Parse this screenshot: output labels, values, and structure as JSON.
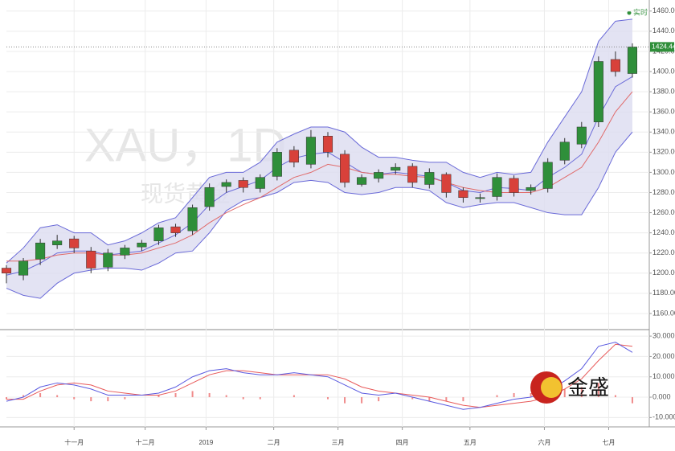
{
  "chart_data": [
    {
      "type": "candlestick",
      "watermark": "XAU，1D",
      "watermark_sub": "现货黄金",
      "legend_label": "实时",
      "x": [
        0,
        5,
        10,
        15,
        20,
        25,
        30,
        35,
        40,
        45,
        50,
        55,
        60,
        65,
        70,
        75,
        80,
        85,
        90,
        95,
        100,
        105,
        110,
        115,
        120,
        125,
        130,
        135,
        140,
        145,
        150,
        155,
        160,
        165,
        170,
        175,
        180,
        185
      ],
      "open": [
        1205,
        1198,
        1214,
        1228,
        1234,
        1222,
        1206,
        1218,
        1226,
        1232,
        1246,
        1242,
        1266,
        1286,
        1292,
        1284,
        1296,
        1322,
        1308,
        1336,
        1318,
        1288,
        1294,
        1302,
        1306,
        1288,
        1298,
        1282,
        1274,
        1276,
        1294,
        1282,
        1284,
        1312,
        1328,
        1350,
        1412,
        1398
      ],
      "high": [
        1208,
        1215,
        1234,
        1238,
        1237,
        1226,
        1224,
        1228,
        1233,
        1248,
        1249,
        1268,
        1289,
        1293,
        1295,
        1298,
        1324,
        1326,
        1342,
        1340,
        1322,
        1298,
        1303,
        1309,
        1309,
        1304,
        1300,
        1285,
        1279,
        1299,
        1297,
        1288,
        1314,
        1334,
        1350,
        1415,
        1420,
        1428
      ],
      "low": [
        1190,
        1193,
        1208,
        1224,
        1220,
        1200,
        1202,
        1214,
        1222,
        1228,
        1236,
        1238,
        1262,
        1280,
        1280,
        1280,
        1292,
        1305,
        1304,
        1315,
        1285,
        1286,
        1290,
        1298,
        1285,
        1284,
        1275,
        1270,
        1270,
        1272,
        1276,
        1278,
        1280,
        1308,
        1324,
        1345,
        1395,
        1394
      ],
      "close": [
        1200,
        1212,
        1230,
        1232,
        1225,
        1205,
        1220,
        1225,
        1230,
        1245,
        1240,
        1265,
        1285,
        1290,
        1285,
        1295,
        1320,
        1310,
        1335,
        1320,
        1290,
        1295,
        1300,
        1305,
        1290,
        1300,
        1280,
        1275,
        1275,
        1295,
        1280,
        1285,
        1310,
        1330,
        1345,
        1410,
        1400,
        1424.44
      ],
      "up_color": "#2f8f3a",
      "down_color": "#d8413a",
      "bollinger": {
        "color": "#6a6ad8",
        "fill": "#dcdcf0",
        "upper": [
          1210,
          1225,
          1245,
          1248,
          1240,
          1240,
          1228,
          1232,
          1240,
          1250,
          1255,
          1275,
          1295,
          1300,
          1300,
          1310,
          1330,
          1338,
          1345,
          1345,
          1340,
          1325,
          1315,
          1315,
          1312,
          1310,
          1310,
          1300,
          1295,
          1300,
          1298,
          1300,
          1330,
          1355,
          1380,
          1430,
          1450,
          1452
        ],
        "middle": [
          1198,
          1202,
          1210,
          1220,
          1222,
          1222,
          1218,
          1220,
          1222,
          1230,
          1238,
          1250,
          1268,
          1280,
          1286,
          1292,
          1305,
          1314,
          1318,
          1320,
          1310,
          1300,
          1298,
          1300,
          1298,
          1296,
          1290,
          1282,
          1280,
          1285,
          1284,
          1282,
          1295,
          1305,
          1318,
          1355,
          1385,
          1395
        ],
        "lower": [
          1185,
          1178,
          1175,
          1190,
          1200,
          1203,
          1205,
          1205,
          1203,
          1210,
          1220,
          1222,
          1240,
          1262,
          1272,
          1275,
          1280,
          1290,
          1292,
          1290,
          1280,
          1278,
          1280,
          1285,
          1285,
          1282,
          1270,
          1265,
          1268,
          1270,
          1270,
          1265,
          1260,
          1258,
          1258,
          1285,
          1320,
          1340
        ]
      },
      "ma": {
        "color": "#e06a6a",
        "values": [
          1212,
          1212,
          1214,
          1218,
          1220,
          1220,
          1218,
          1218,
          1220,
          1225,
          1230,
          1238,
          1250,
          1260,
          1268,
          1275,
          1285,
          1295,
          1300,
          1308,
          1305,
          1300,
          1298,
          1298,
          1296,
          1295,
          1290,
          1285,
          1282,
          1280,
          1280,
          1280,
          1285,
          1295,
          1305,
          1330,
          1360,
          1380
        ]
      },
      "xlim": [
        0,
        190
      ],
      "ylim": [
        1144,
        1471
      ],
      "yticks": [
        {
          "value": 1460,
          "label": "1460.00"
        },
        {
          "value": 1440,
          "label": "1440.00"
        },
        {
          "value": 1420,
          "label": "1420.00"
        },
        {
          "value": 1400,
          "label": "1400.00"
        },
        {
          "value": 1380,
          "label": "1380.00"
        },
        {
          "value": 1360,
          "label": "1360.00"
        },
        {
          "value": 1340,
          "label": "1340.00"
        },
        {
          "value": 1320,
          "label": "1320.00"
        },
        {
          "value": 1300,
          "label": "1300.00"
        },
        {
          "value": 1280,
          "label": "1280.00"
        },
        {
          "value": 1260,
          "label": "1260.00"
        },
        {
          "value": 1240,
          "label": "1240.00"
        },
        {
          "value": 1220,
          "label": "1220.00"
        },
        {
          "value": 1200,
          "label": "1200.00"
        },
        {
          "value": 1180,
          "label": "1180.00"
        },
        {
          "value": 1160,
          "label": "1160.00"
        }
      ],
      "grid": true
    },
    {
      "type": "macd",
      "brand": "金盛",
      "x": [
        0,
        5,
        10,
        15,
        20,
        25,
        30,
        35,
        40,
        45,
        50,
        55,
        60,
        65,
        70,
        75,
        80,
        85,
        90,
        95,
        100,
        105,
        110,
        115,
        120,
        125,
        130,
        135,
        140,
        145,
        150,
        155,
        160,
        165,
        170,
        175,
        180,
        185
      ],
      "macd": [
        -2,
        0,
        5,
        7,
        6,
        4,
        1,
        1,
        1,
        2,
        5,
        10,
        13,
        14,
        12,
        11,
        11,
        12,
        11,
        10,
        6,
        2,
        1,
        2,
        0,
        -2,
        -4,
        -6,
        -5,
        -3,
        -1,
        0,
        3,
        8,
        14,
        25,
        27,
        22
      ],
      "signal": [
        -1,
        -1,
        3,
        6,
        7,
        6,
        3,
        2,
        1,
        1,
        3,
        7,
        11,
        13,
        13,
        12,
        11,
        11,
        11,
        11,
        9,
        5,
        3,
        2,
        1,
        0,
        -2,
        -4,
        -5,
        -4,
        -3,
        -2,
        0,
        4,
        9,
        18,
        26,
        25
      ],
      "histogram": [
        -1,
        1,
        2,
        1,
        -1,
        -2,
        -2,
        -1,
        0,
        1,
        2,
        3,
        2,
        1,
        -1,
        -1,
        0,
        1,
        0,
        -1,
        -3,
        -3,
        -2,
        0,
        -1,
        -2,
        -2,
        -2,
        0,
        1,
        2,
        2,
        3,
        4,
        5,
        7,
        1,
        -3
      ],
      "macd_color": "#5a5ae0",
      "signal_color": "#e85a5a",
      "histogram_color": "#f08a8a",
      "xlim": [
        0,
        190
      ],
      "ylim": [
        -14.6,
        33.2
      ],
      "yticks": [
        {
          "value": 30,
          "label": "30.000"
        },
        {
          "value": 20,
          "label": "20.000"
        },
        {
          "value": 10,
          "label": "10.000"
        },
        {
          "value": 0,
          "label": "0.000"
        },
        {
          "value": -10,
          "label": "-10.000"
        }
      ],
      "xticks": [
        {
          "value": 20,
          "label": "十一月"
        },
        {
          "value": 41,
          "label": "十二月"
        },
        {
          "value": 59,
          "label": "2019"
        },
        {
          "value": 79,
          "label": "二月"
        },
        {
          "value": 98,
          "label": "三月"
        },
        {
          "value": 117,
          "label": "四月"
        },
        {
          "value": 137,
          "label": "五月"
        },
        {
          "value": 159,
          "label": "六月"
        },
        {
          "value": 178,
          "label": "七月"
        }
      ],
      "grid": true
    }
  ]
}
